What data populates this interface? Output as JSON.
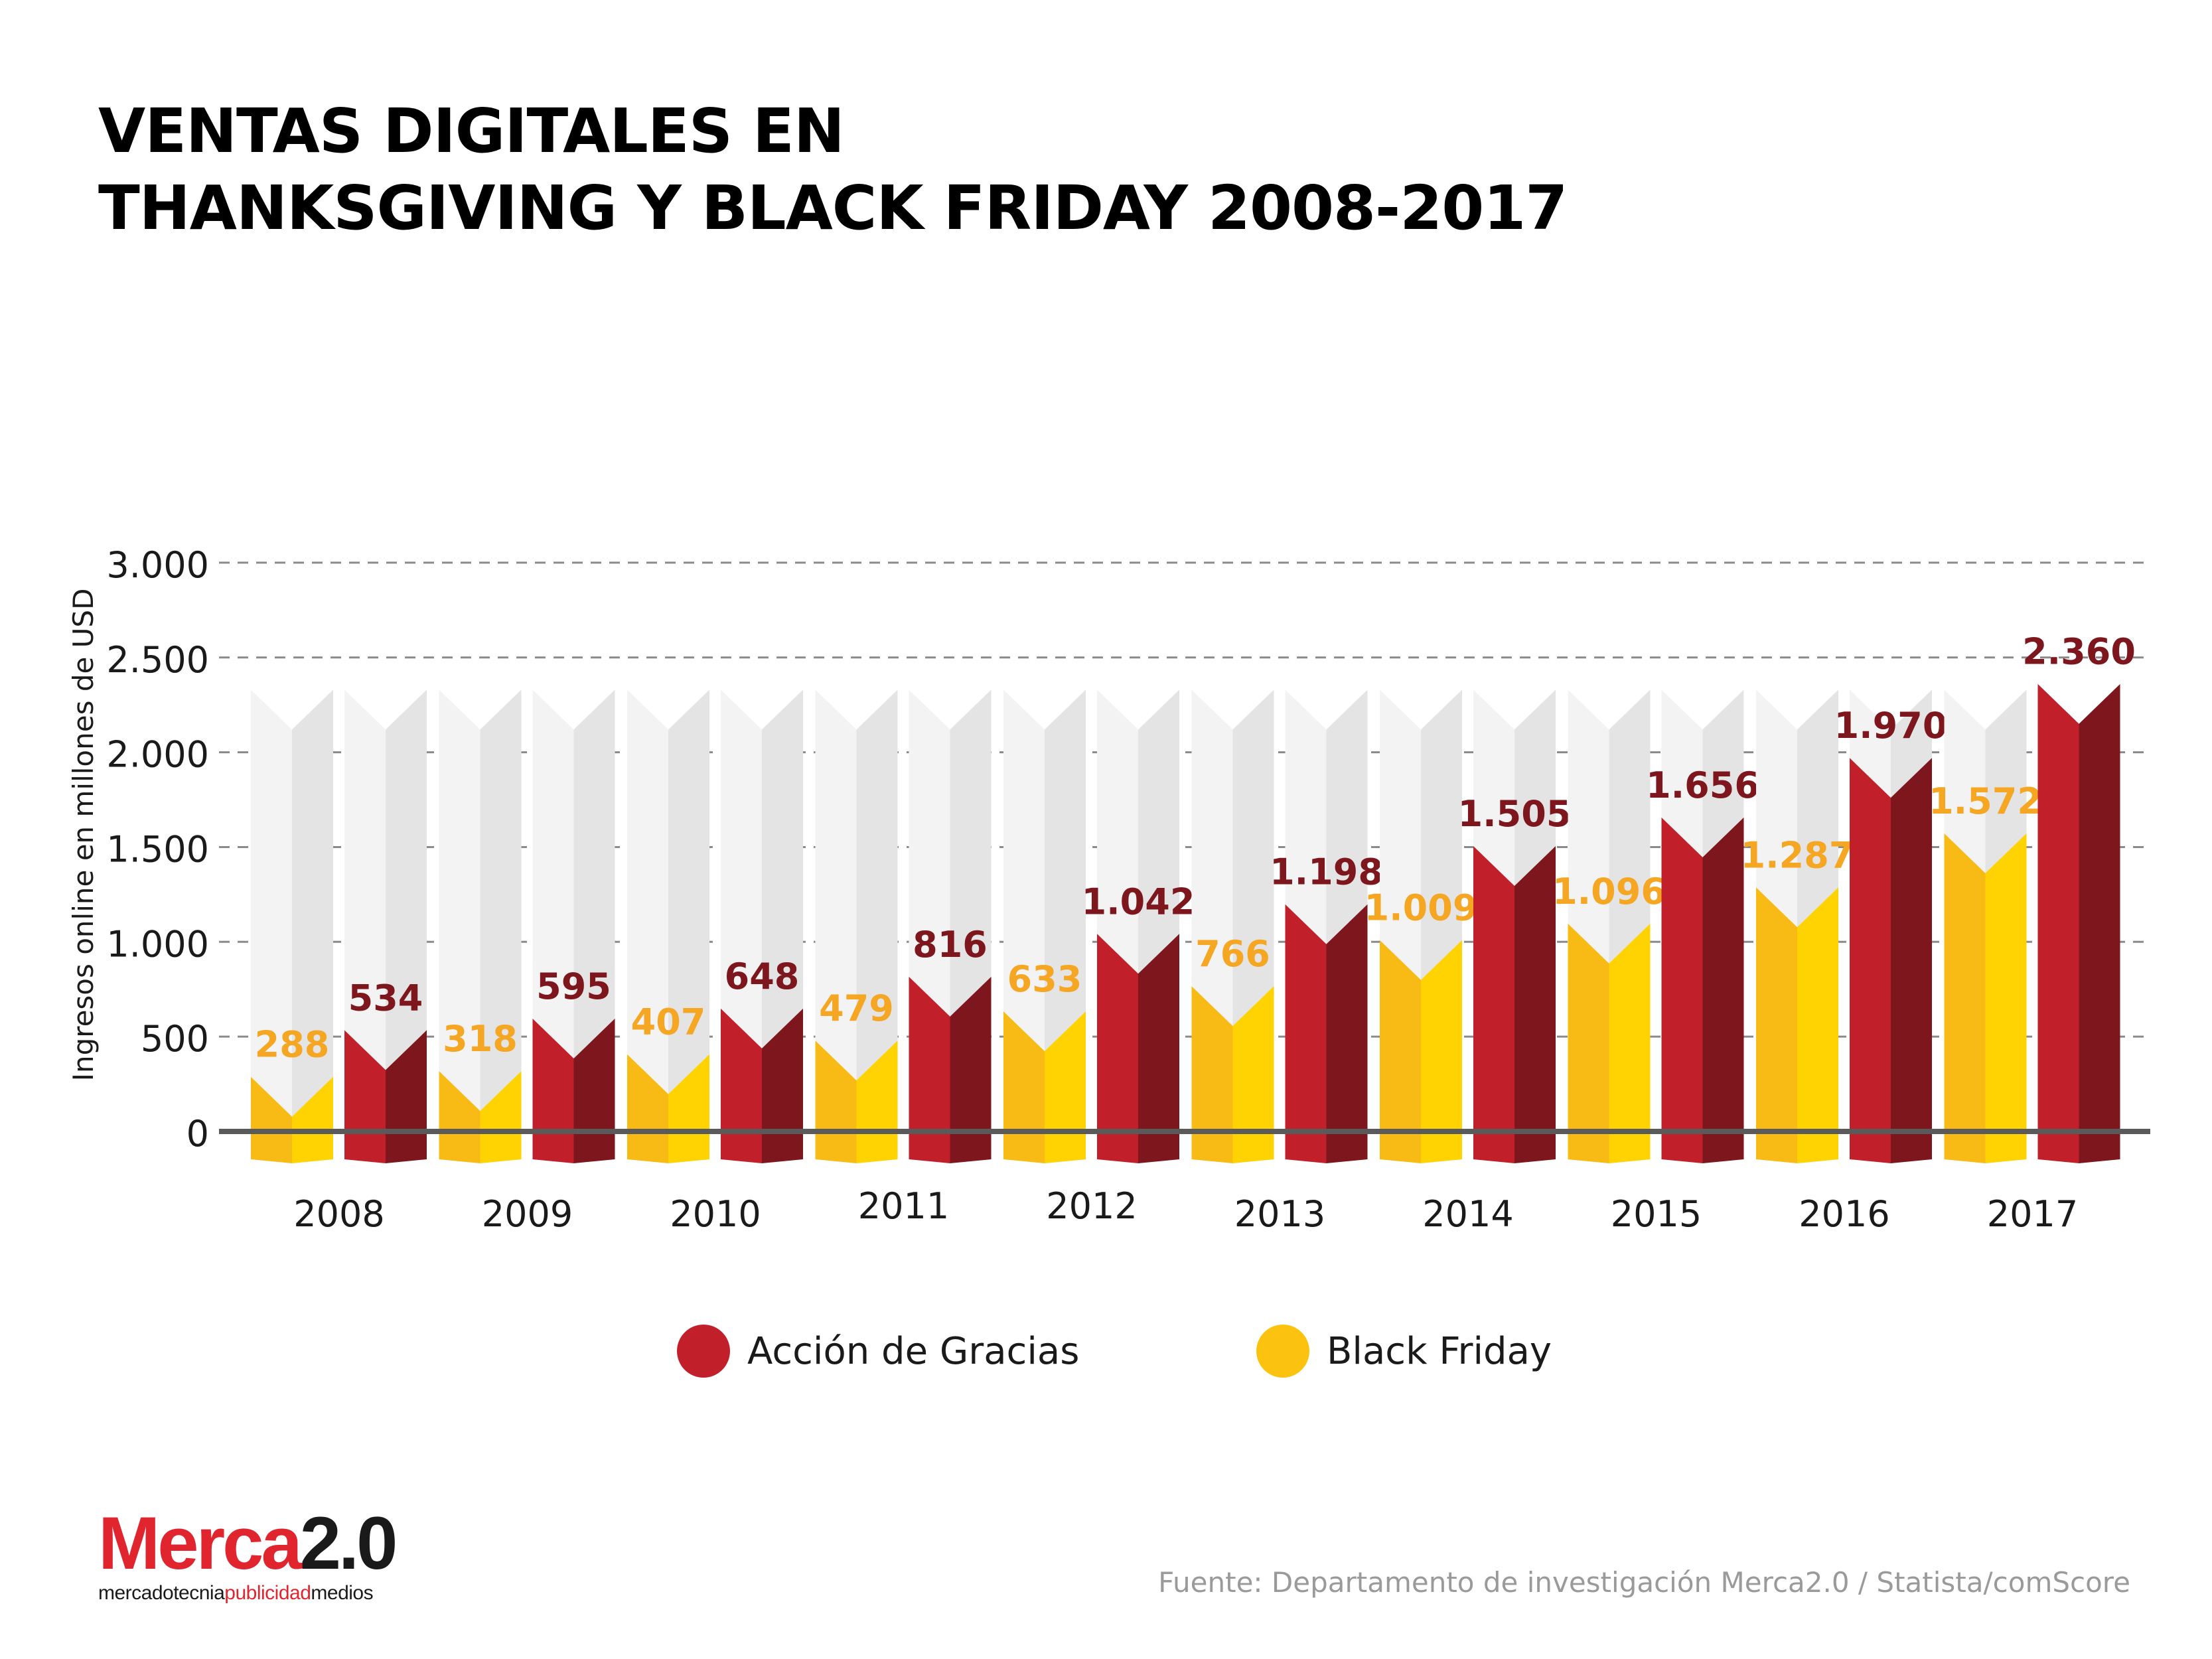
{
  "title_lines": [
    "VENTAS DIGITALES EN",
    "THANKSGIVING Y BLACK FRIDAY 2008-2017"
  ],
  "colors": {
    "accion_front": "#c1202b",
    "accion_side": "#7e161d",
    "accion_label": "#7e161d",
    "black_front": "#f8bb16",
    "black_side": "#ffd302",
    "black_label": "#f5a623",
    "ghost_front": "#f3f3f3",
    "ghost_side": "#e4e4e4",
    "grid": "#8a8a8a",
    "axis": "#5a5a5a"
  },
  "chart_data": {
    "type": "bar",
    "categories": [
      "2008",
      "2009",
      "2010",
      "2011",
      "2012",
      "2013",
      "2014",
      "2015",
      "2016",
      "2017"
    ],
    "series": [
      {
        "name": "Black Friday",
        "values": [
          288,
          318,
          407,
          479,
          633,
          766,
          1009,
          1096,
          1287,
          1572
        ]
      },
      {
        "name": "Acción de Gracias",
        "values": [
          534,
          595,
          648,
          816,
          1042,
          1198,
          1505,
          1656,
          1970,
          2360
        ]
      }
    ],
    "data_labels": {
      "Black Friday": [
        "288",
        "318",
        "407",
        "479",
        "633",
        "766",
        "1.009",
        "1.096",
        "1.287",
        "1.572"
      ],
      "Acción de Gracias": [
        "534",
        "595",
        "648",
        "816",
        "1.042",
        "1.198",
        "1.505",
        "1.656",
        "1.970",
        "2.360"
      ]
    },
    "ylabel": "Ingresos online en millones de USD",
    "ylim": [
      0,
      3000
    ],
    "yticks": [
      0,
      500,
      1000,
      1500,
      2000,
      2500,
      3000
    ],
    "ytick_labels": [
      "0",
      "500",
      "1.000",
      "1.500",
      "2.000",
      "2.500",
      "3.000"
    ],
    "grid": true,
    "legend_position": "bottom"
  },
  "legend": [
    {
      "label": "Acción de Gracias",
      "color": "#c1202b"
    },
    {
      "label": "Black Friday",
      "color": "#f8bb16"
    }
  ],
  "logo": {
    "brand_red": "Merca",
    "brand_black": "2.0",
    "tag_a": "mercadotecnia",
    "tag_b": "publicidad",
    "tag_c": "medios"
  },
  "source": "Fuente: Departamento de investigación Merca2.0 / Statista/comScore"
}
